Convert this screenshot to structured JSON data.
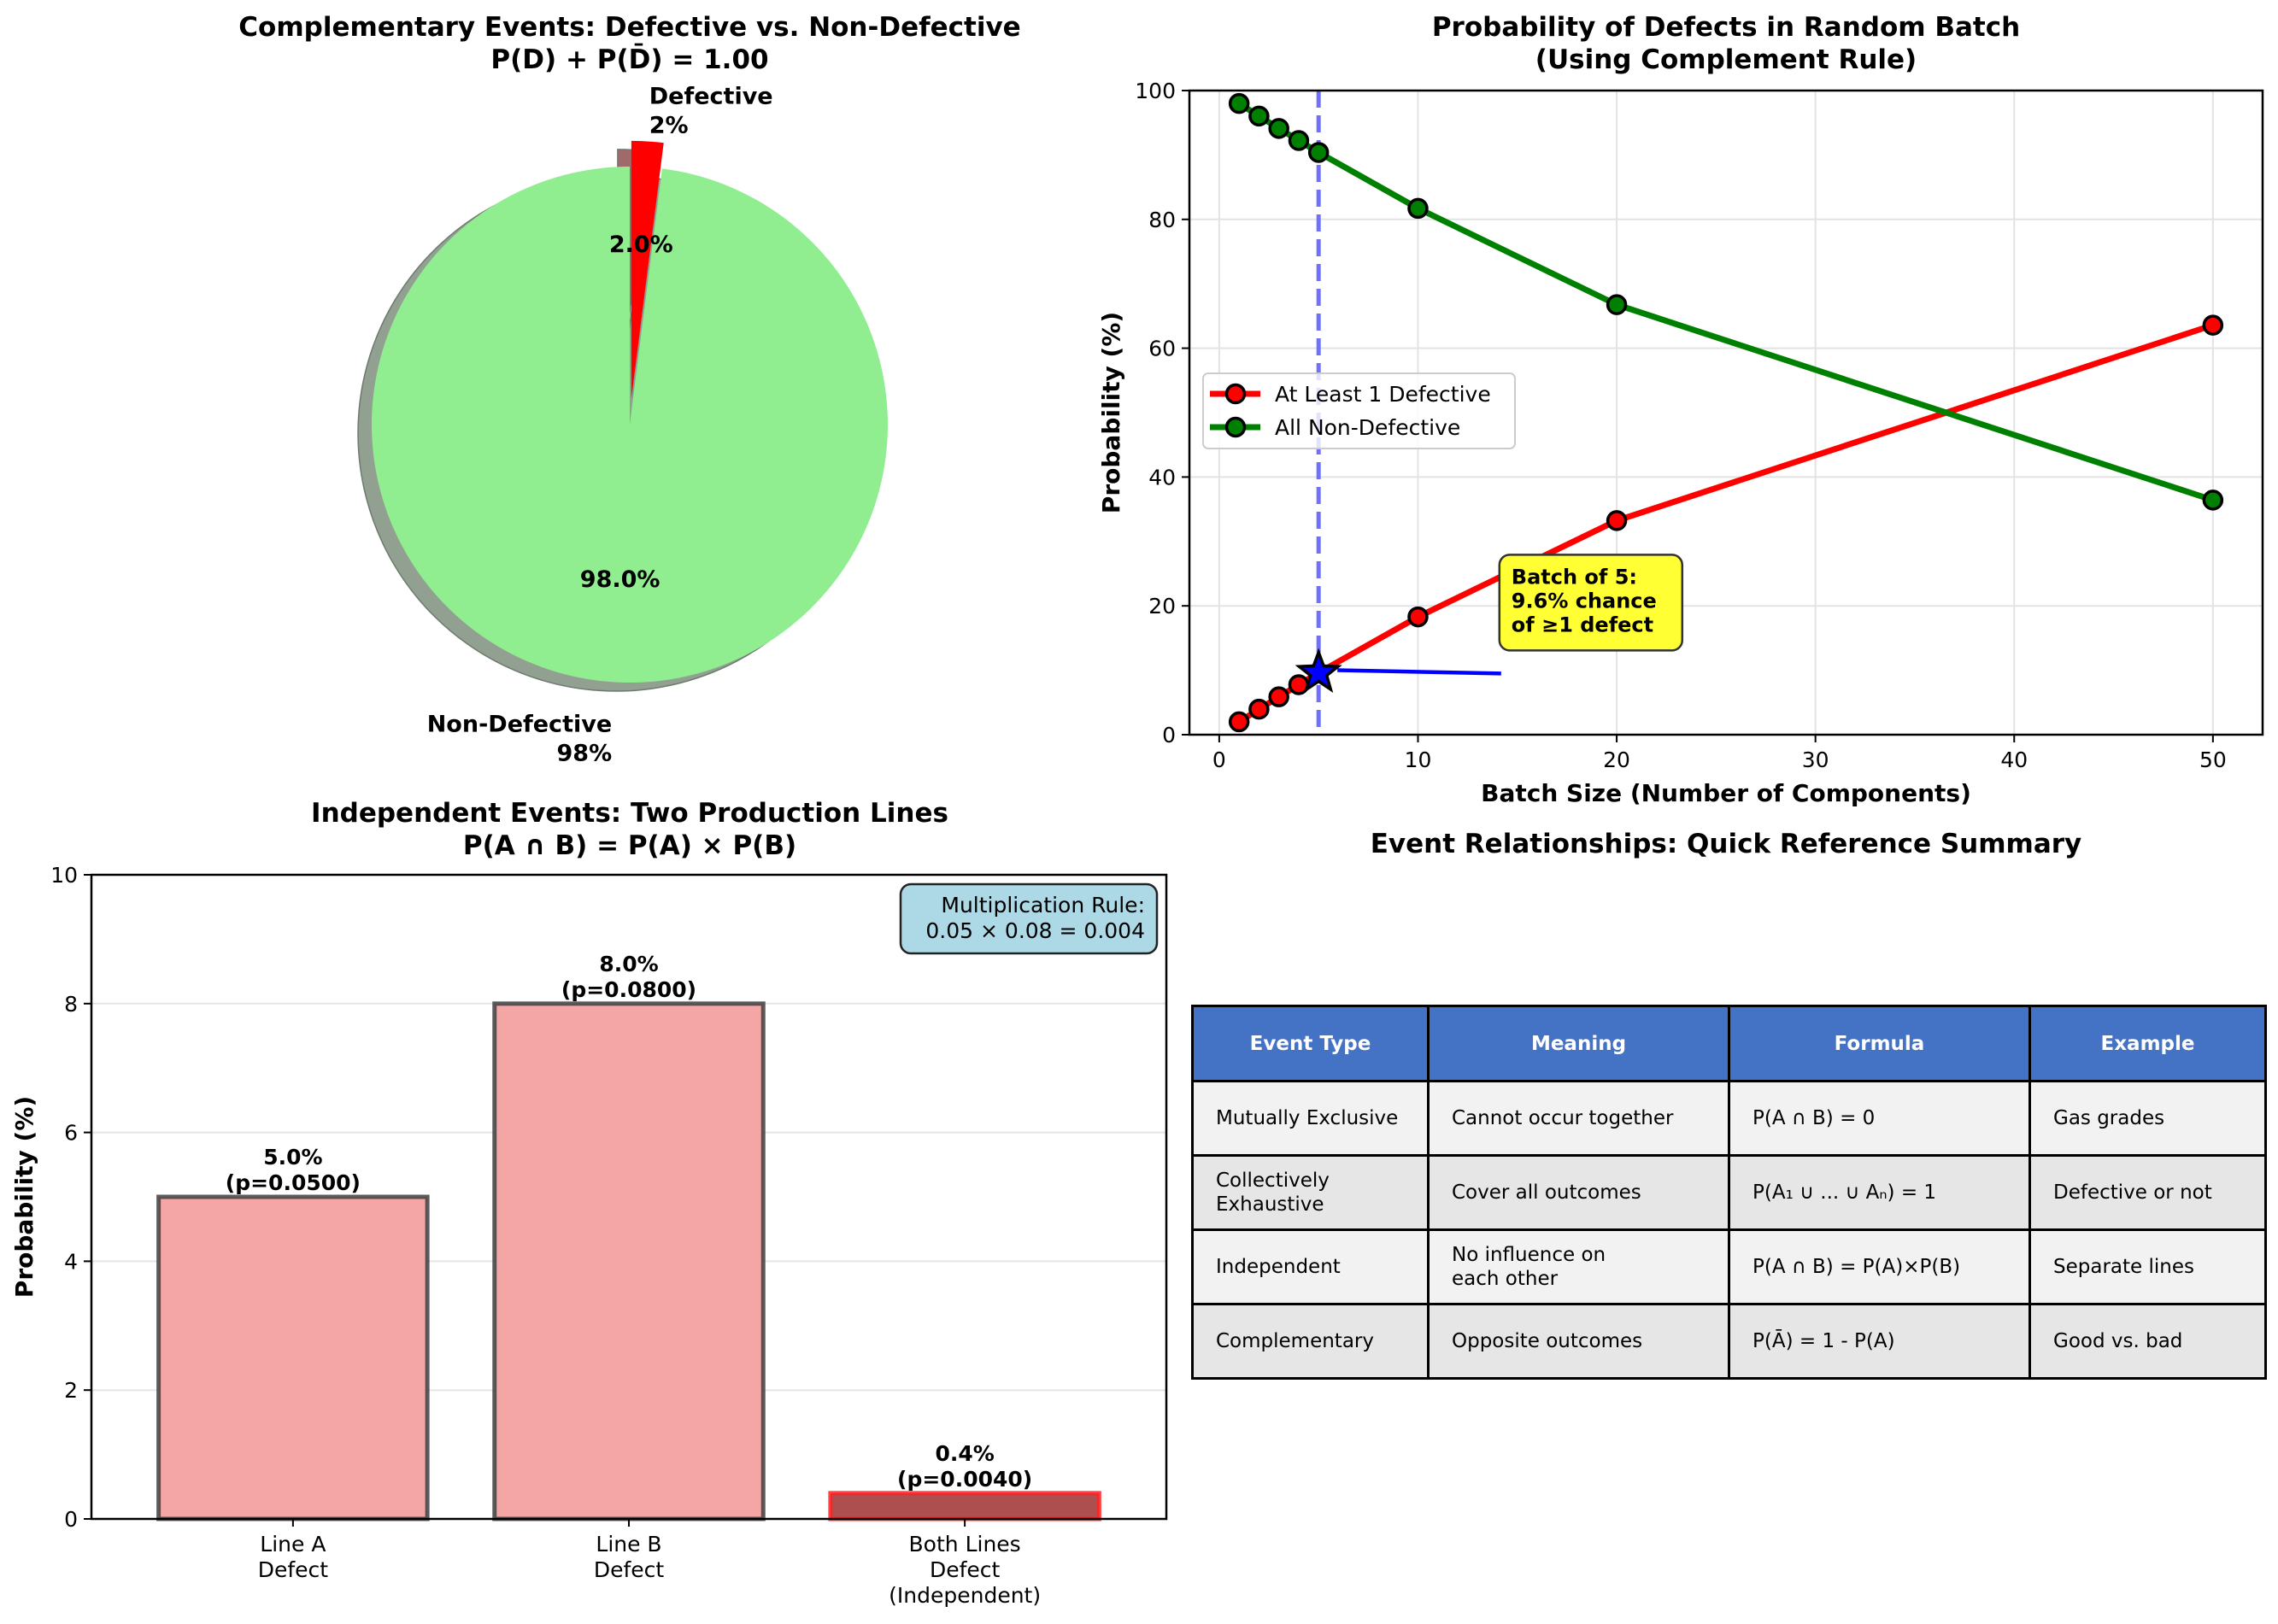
{
  "chart_data": [
    {
      "type": "pie",
      "title": "Complementary Events: Defective vs. Non-Defective",
      "subtitle": "P(D) + P(D̄) = 1.00",
      "slices": [
        {
          "label": "Defective",
          "outer_label": "Defective\n2%",
          "value": 2.0,
          "pct_label": "2.0%",
          "color": "#ff0000",
          "exploded": true
        },
        {
          "label": "Non-Defective",
          "outer_label": "Non-Defective\n98%",
          "value": 98.0,
          "pct_label": "98.0%",
          "color": "#90ee90",
          "exploded": false
        }
      ],
      "shadow": true
    },
    {
      "type": "line",
      "title": "Probability of Defects in Random Batch",
      "subtitle": "(Using Complement Rule)",
      "xlabel": "Batch Size (Number of Components)",
      "ylabel": "Probability (%)",
      "x": [
        1,
        2,
        3,
        4,
        5,
        10,
        20,
        50
      ],
      "xlim": [
        -1.5,
        52.5
      ],
      "ylim": [
        0,
        100
      ],
      "xticks": [
        0,
        10,
        20,
        30,
        40,
        50
      ],
      "yticks": [
        0,
        20,
        40,
        60,
        80,
        100
      ],
      "grid": true,
      "legend": "center-left",
      "series": [
        {
          "name": "At Least 1 Defective",
          "color": "#ff0000",
          "values": [
            2.0,
            3.96,
            5.88,
            7.76,
            9.61,
            18.29,
            33.24,
            63.58
          ]
        },
        {
          "name": "All Non-Defective",
          "color": "#008000",
          "values": [
            98.0,
            96.04,
            94.12,
            92.24,
            90.39,
            81.71,
            66.76,
            36.42
          ]
        }
      ],
      "vline": {
        "x": 5,
        "color": "#7070ff",
        "style": "dashed"
      },
      "highlight": {
        "x": 5,
        "y": 9.61,
        "marker": "star",
        "color": "#0000ff"
      },
      "annotation": {
        "lines": [
          "Batch of 5:",
          "9.6% chance",
          "of ≥1 defect"
        ],
        "anchor_x": 5,
        "anchor_y": 9.61,
        "box_x": 14.7,
        "box_y": 20.5,
        "box_color": "#ffff33",
        "arrow_color": "#0000ff"
      }
    },
    {
      "type": "bar",
      "title": "Independent Events: Two Production Lines",
      "subtitle": "P(A ∩ B) = P(A) × P(B)",
      "xlabel": "",
      "ylabel": "Probability (%)",
      "categories": [
        [
          "Line A",
          "Defect"
        ],
        [
          "Line B",
          "Defect"
        ],
        [
          "Both Lines",
          "Defect",
          "(Independent)"
        ]
      ],
      "values": [
        5.0,
        8.0,
        0.4
      ],
      "value_labels": [
        [
          "5.0%",
          "(p=0.0500)"
        ],
        [
          "8.0%",
          "(p=0.0800)"
        ],
        [
          "0.4%",
          "(p=0.0040)"
        ]
      ],
      "colors": [
        "#f4a6a6",
        "#f4a6a6",
        "#ad4f4f"
      ],
      "edge_colors": [
        "#404040",
        "#404040",
        "#ff2020"
      ],
      "ylim": [
        0,
        10
      ],
      "yticks": [
        0,
        2,
        4,
        6,
        8,
        10
      ],
      "grid": "y",
      "annotation": {
        "lines": [
          "Multiplication Rule:",
          "0.05 × 0.08 = 0.004"
        ],
        "placement": "top-right",
        "box_color": "#add8e6"
      }
    },
    {
      "type": "table",
      "title": "Event Relationships: Quick Reference Summary",
      "header_color": "#4472c4",
      "columns": [
        "Event Type",
        "Meaning",
        "Formula",
        "Example"
      ],
      "rows": [
        [
          "Mutually Exclusive",
          "Cannot occur together",
          "P(A ∩ B) = 0",
          "Gas grades"
        ],
        [
          "Collectively\nExhaustive",
          "Cover all outcomes",
          "P(A₁ ∪ ... ∪ Aₙ) = 1",
          "Defective or not"
        ],
        [
          "Independent",
          "No influence on\neach other",
          "P(A ∩ B) = P(A)×P(B)",
          "Separate lines"
        ],
        [
          "Complementary",
          "Opposite outcomes",
          "P(Ā) = 1 - P(A)",
          "Good vs. bad"
        ]
      ]
    }
  ]
}
